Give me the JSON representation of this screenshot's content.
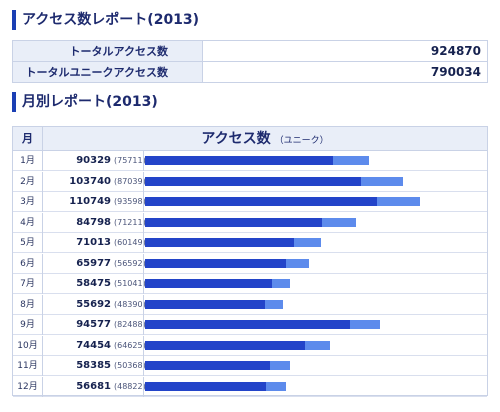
{
  "section1": {
    "title": "アクセス数レポート(2013)"
  },
  "summary": {
    "rows": [
      {
        "label": "トータルアクセス数",
        "value": "924870"
      },
      {
        "label": "トータルユニークアクセス数",
        "value": "790034"
      }
    ]
  },
  "section2": {
    "title": "月別レポート(2013)"
  },
  "monthly": {
    "head_month": "月",
    "head_title": "アクセス数",
    "head_sub": "（ユニーク）"
  },
  "chart_data": {
    "type": "bar",
    "orientation": "horizontal",
    "categories": [
      "1月",
      "2月",
      "3月",
      "4月",
      "5月",
      "6月",
      "7月",
      "8月",
      "9月",
      "10月",
      "11月",
      "12月"
    ],
    "series": [
      {
        "name": "アクセス数",
        "values": [
          90329,
          103740,
          110749,
          84798,
          71013,
          65977,
          58475,
          55692,
          94577,
          74454,
          58385,
          56681
        ]
      },
      {
        "name": "ユニーク",
        "values": [
          75711,
          87039,
          93598,
          71211,
          60149,
          56592,
          51041,
          48390,
          82488,
          64625,
          50368,
          48822
        ]
      }
    ],
    "colors": {
      "total": "#5d8bec",
      "unique": "#2344c9"
    },
    "grid": false
  }
}
